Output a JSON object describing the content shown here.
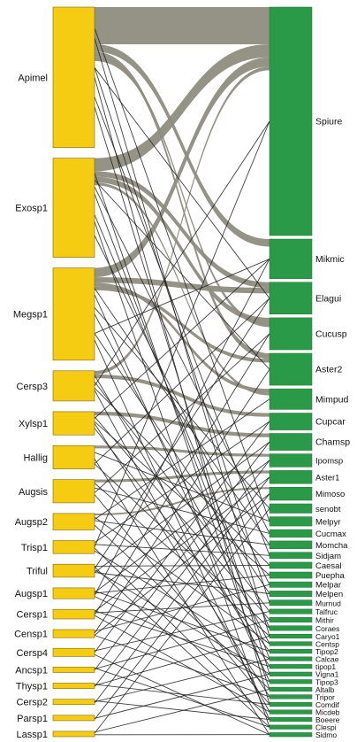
{
  "colors": {
    "left_bar": "#f6cc13",
    "left_bar_stroke": "#7a6a10",
    "right_bar": "#2b9a48",
    "right_bar_stroke": "#1f6f34",
    "wide_link": "#8f8c80",
    "thin_link": "#1e1e1e"
  },
  "left_nodes": [
    {
      "label": "Apimel",
      "weight": 20
    },
    {
      "label": "Exosp1",
      "weight": 14
    },
    {
      "label": "Megsp1",
      "weight": 13
    },
    {
      "label": "Cersp3",
      "weight": 4
    },
    {
      "label": "Xylsp1",
      "weight": 3
    },
    {
      "label": "Hallig",
      "weight": 3
    },
    {
      "label": "Augsis",
      "weight": 3
    },
    {
      "label": "Augsp2",
      "weight": 2
    },
    {
      "label": "Trisp1",
      "weight": 1.5
    },
    {
      "label": "Triful",
      "weight": 1.5
    },
    {
      "label": "Augsp1",
      "weight": 1.2
    },
    {
      "label": "Cersp1",
      "weight": 1
    },
    {
      "label": "Censp1",
      "weight": 0.8
    },
    {
      "label": "Cersp4",
      "weight": 0.8
    },
    {
      "label": "Ancsp1",
      "weight": 0.4
    },
    {
      "label": "Thysp1",
      "weight": 0.4
    },
    {
      "label": "Cersp2",
      "weight": 0.4
    },
    {
      "label": "Parsp1",
      "weight": 0.4
    },
    {
      "label": "Lassp1",
      "weight": 0.4
    }
  ],
  "right_nodes": [
    {
      "label": "Spiure",
      "weight": 30
    },
    {
      "label": "Mikmic",
      "weight": 5
    },
    {
      "label": "Elagui",
      "weight": 4
    },
    {
      "label": "Cucusp",
      "weight": 4
    },
    {
      "label": "Aster2",
      "weight": 4
    },
    {
      "label": "Mimpud",
      "weight": 2.5
    },
    {
      "label": "Cupcar",
      "weight": 2
    },
    {
      "label": "Chamsp",
      "weight": 2
    },
    {
      "label": "Ipomsp",
      "weight": 1.5
    },
    {
      "label": "Aster1",
      "weight": 1.5
    },
    {
      "label": "Mimoso",
      "weight": 1.5
    },
    {
      "label": "senobt",
      "weight": 1
    },
    {
      "label": "Melpyr",
      "weight": 1
    },
    {
      "label": "Cucmax",
      "weight": 0.8
    },
    {
      "label": "Momcha",
      "weight": 0.8
    },
    {
      "label": "Sidjam",
      "weight": 0.6
    },
    {
      "label": "Caesal",
      "weight": 0.6
    },
    {
      "label": "Puepha",
      "weight": 0.6
    },
    {
      "label": "Melpar",
      "weight": 0.5
    },
    {
      "label": "Melpen",
      "weight": 0.5
    },
    {
      "label": "Murnud",
      "weight": 0.5
    },
    {
      "label": "Talfruc",
      "weight": 0.4
    },
    {
      "label": "Mithir",
      "weight": 0.4
    },
    {
      "label": "Coraes",
      "weight": 0.4
    },
    {
      "label": "Caryo1",
      "weight": 0.3
    },
    {
      "label": "Centsp",
      "weight": 0.3
    },
    {
      "label": "Tipop2",
      "weight": 0.3
    },
    {
      "label": "Calcae",
      "weight": 0.3
    },
    {
      "label": "tipop1",
      "weight": 0.3
    },
    {
      "label": "Vigna1",
      "weight": 0.3
    },
    {
      "label": "Tipop3",
      "weight": 0.3
    },
    {
      "label": "Altalb",
      "weight": 0.3
    },
    {
      "label": "Tripor",
      "weight": 0.3
    },
    {
      "label": "Comdif",
      "weight": 0.3
    },
    {
      "label": "Micdeb",
      "weight": 0.3
    },
    {
      "label": "Boeere",
      "weight": 0.3
    },
    {
      "label": "Clespi",
      "weight": 0.3
    },
    {
      "label": "Sidmo",
      "weight": 0.3
    }
  ],
  "wide_links": [
    [
      0,
      0,
      20
    ],
    [
      0,
      1,
      4
    ],
    [
      0,
      4,
      3
    ],
    [
      1,
      0,
      7
    ],
    [
      1,
      2,
      3
    ],
    [
      1,
      3,
      3
    ],
    [
      2,
      0,
      5
    ],
    [
      2,
      2,
      3
    ],
    [
      2,
      5,
      2
    ],
    [
      2,
      4,
      2
    ],
    [
      3,
      0,
      2
    ],
    [
      3,
      6,
      2
    ],
    [
      4,
      7,
      2
    ],
    [
      5,
      8,
      1.5
    ],
    [
      6,
      9,
      1.5
    ],
    [
      7,
      10,
      1
    ],
    [
      0,
      3,
      2
    ],
    [
      1,
      5,
      1.5
    ]
  ],
  "thin_links": [
    [
      0,
      12
    ],
    [
      0,
      15
    ],
    [
      0,
      20
    ],
    [
      0,
      24
    ],
    [
      0,
      29
    ],
    [
      0,
      33
    ],
    [
      1,
      13
    ],
    [
      1,
      18
    ],
    [
      1,
      23
    ],
    [
      1,
      27
    ],
    [
      1,
      31
    ],
    [
      1,
      36
    ],
    [
      2,
      11
    ],
    [
      2,
      14
    ],
    [
      2,
      19
    ],
    [
      2,
      25
    ],
    [
      2,
      30
    ],
    [
      2,
      35
    ],
    [
      3,
      16
    ],
    [
      3,
      21
    ],
    [
      3,
      28
    ],
    [
      3,
      34
    ],
    [
      4,
      17
    ],
    [
      4,
      22
    ],
    [
      4,
      26
    ],
    [
      4,
      32
    ],
    [
      5,
      12
    ],
    [
      5,
      23
    ],
    [
      5,
      37
    ],
    [
      6,
      13
    ],
    [
      6,
      24
    ],
    [
      6,
      33
    ],
    [
      7,
      14
    ],
    [
      7,
      25
    ],
    [
      7,
      31
    ],
    [
      8,
      0
    ],
    [
      8,
      15
    ],
    [
      8,
      27
    ],
    [
      8,
      35
    ],
    [
      9,
      2
    ],
    [
      9,
      16
    ],
    [
      9,
      19
    ],
    [
      9,
      29
    ],
    [
      9,
      36
    ],
    [
      10,
      1
    ],
    [
      10,
      17
    ],
    [
      10,
      26
    ],
    [
      10,
      30
    ],
    [
      11,
      3
    ],
    [
      11,
      20
    ],
    [
      11,
      28
    ],
    [
      11,
      34
    ],
    [
      12,
      4
    ],
    [
      12,
      18
    ],
    [
      12,
      32
    ],
    [
      13,
      6
    ],
    [
      13,
      21
    ],
    [
      13,
      37
    ],
    [
      14,
      7
    ],
    [
      14,
      22
    ],
    [
      14,
      36
    ],
    [
      15,
      8
    ],
    [
      15,
      24
    ],
    [
      15,
      33
    ],
    [
      16,
      9
    ],
    [
      16,
      27
    ],
    [
      16,
      35
    ],
    [
      17,
      10
    ],
    [
      17,
      29
    ],
    [
      18,
      11
    ],
    [
      18,
      31
    ],
    [
      18,
      37
    ],
    [
      0,
      2
    ],
    [
      1,
      4
    ],
    [
      2,
      1
    ],
    [
      3,
      0
    ],
    [
      4,
      1
    ],
    [
      5,
      2
    ],
    [
      6,
      3
    ],
    [
      7,
      5
    ],
    [
      8,
      6
    ],
    [
      9,
      7
    ],
    [
      10,
      8
    ],
    [
      11,
      9
    ],
    [
      12,
      10
    ]
  ]
}
